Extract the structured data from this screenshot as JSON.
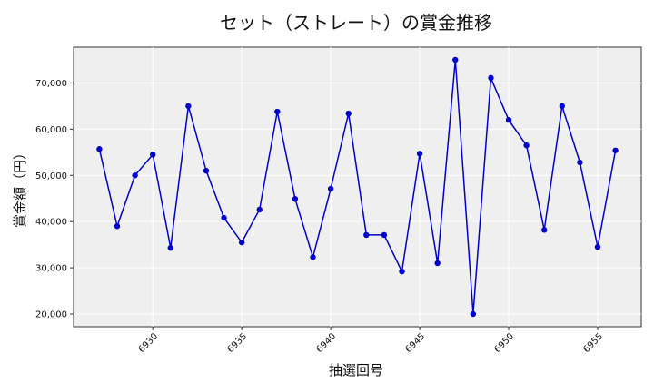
{
  "chart_data": {
    "type": "line",
    "title": "セット（ストレート）の賞金推移",
    "xlabel": "抽選回号",
    "ylabel": "賞金額（円）",
    "x": [
      6927,
      6928,
      6929,
      6930,
      6931,
      6932,
      6933,
      6934,
      6935,
      6936,
      6937,
      6938,
      6939,
      6940,
      6941,
      6942,
      6943,
      6944,
      6945,
      6946,
      6947,
      6948,
      6949,
      6950,
      6951,
      6952,
      6953,
      6954,
      6955,
      6956
    ],
    "series": [
      {
        "values": [
          55700,
          39000,
          50000,
          54500,
          34300,
          65000,
          51000,
          40800,
          35500,
          42600,
          63800,
          44900,
          32300,
          47100,
          63400,
          37100,
          37100,
          29200,
          54700,
          31000,
          75000,
          20000,
          71100,
          62000,
          56500,
          38200,
          65000,
          52800,
          34500,
          55400
        ],
        "color": "#0000cc"
      }
    ],
    "xlim": [
      6925.55,
      6957.45
    ],
    "ylim": [
      17250,
      77750
    ],
    "xticks": [
      6930,
      6935,
      6940,
      6945,
      6950,
      6955
    ],
    "yticks": [
      20000,
      30000,
      40000,
      50000,
      60000,
      70000
    ],
    "ytick_labels": [
      "20,000",
      "30,000",
      "40,000",
      "50,000",
      "60,000",
      "70,000"
    ],
    "grid": true,
    "background": "#efefef",
    "grid_color": "#ffffff"
  }
}
